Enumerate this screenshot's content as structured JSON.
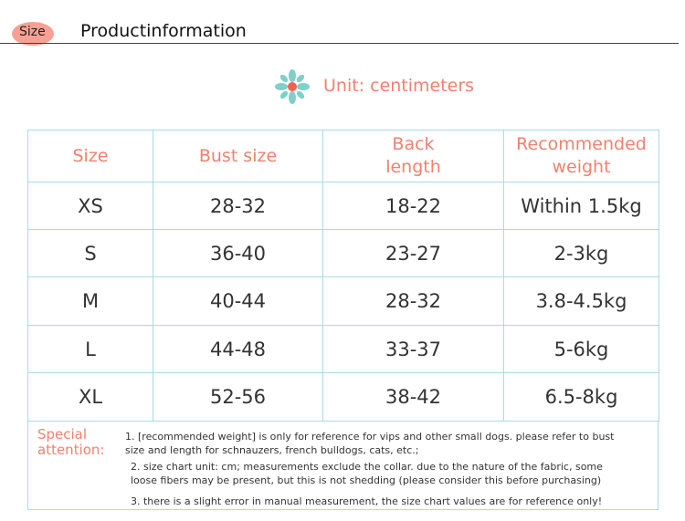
{
  "header": {
    "tag": "Size",
    "title": "Productinformation"
  },
  "unit": "Unit: centimeters",
  "table": {
    "columns": [
      "Size",
      "Bust size",
      "Back length",
      "Recommended weight"
    ],
    "rows": [
      [
        "XS",
        "28-32",
        "18-22",
        "Within 1.5kg"
      ],
      [
        "S",
        "36-40",
        "23-27",
        "2-3kg"
      ],
      [
        "M",
        "40-44",
        "28-32",
        "3.8-4.5kg"
      ],
      [
        "L",
        "44-48",
        "33-37",
        "5-6kg"
      ],
      [
        "XL",
        "52-56",
        "38-42",
        "6.5-8kg"
      ]
    ]
  },
  "notes": {
    "label": "Special attention:",
    "items": [
      "1. [recommended weight] is only for reference for vips and other small dogs. please refer to bust size and length for schnauzers, french bulldogs, cats, etc.;",
      "2. size chart unit: cm; measurements exclude the collar. due to the nature of the fabric, some loose fibers may be present, but this is not shedding (please consider this before purchasing)",
      "3. there is a slight error in manual measurement, the size chart values are for reference only!"
    ]
  }
}
